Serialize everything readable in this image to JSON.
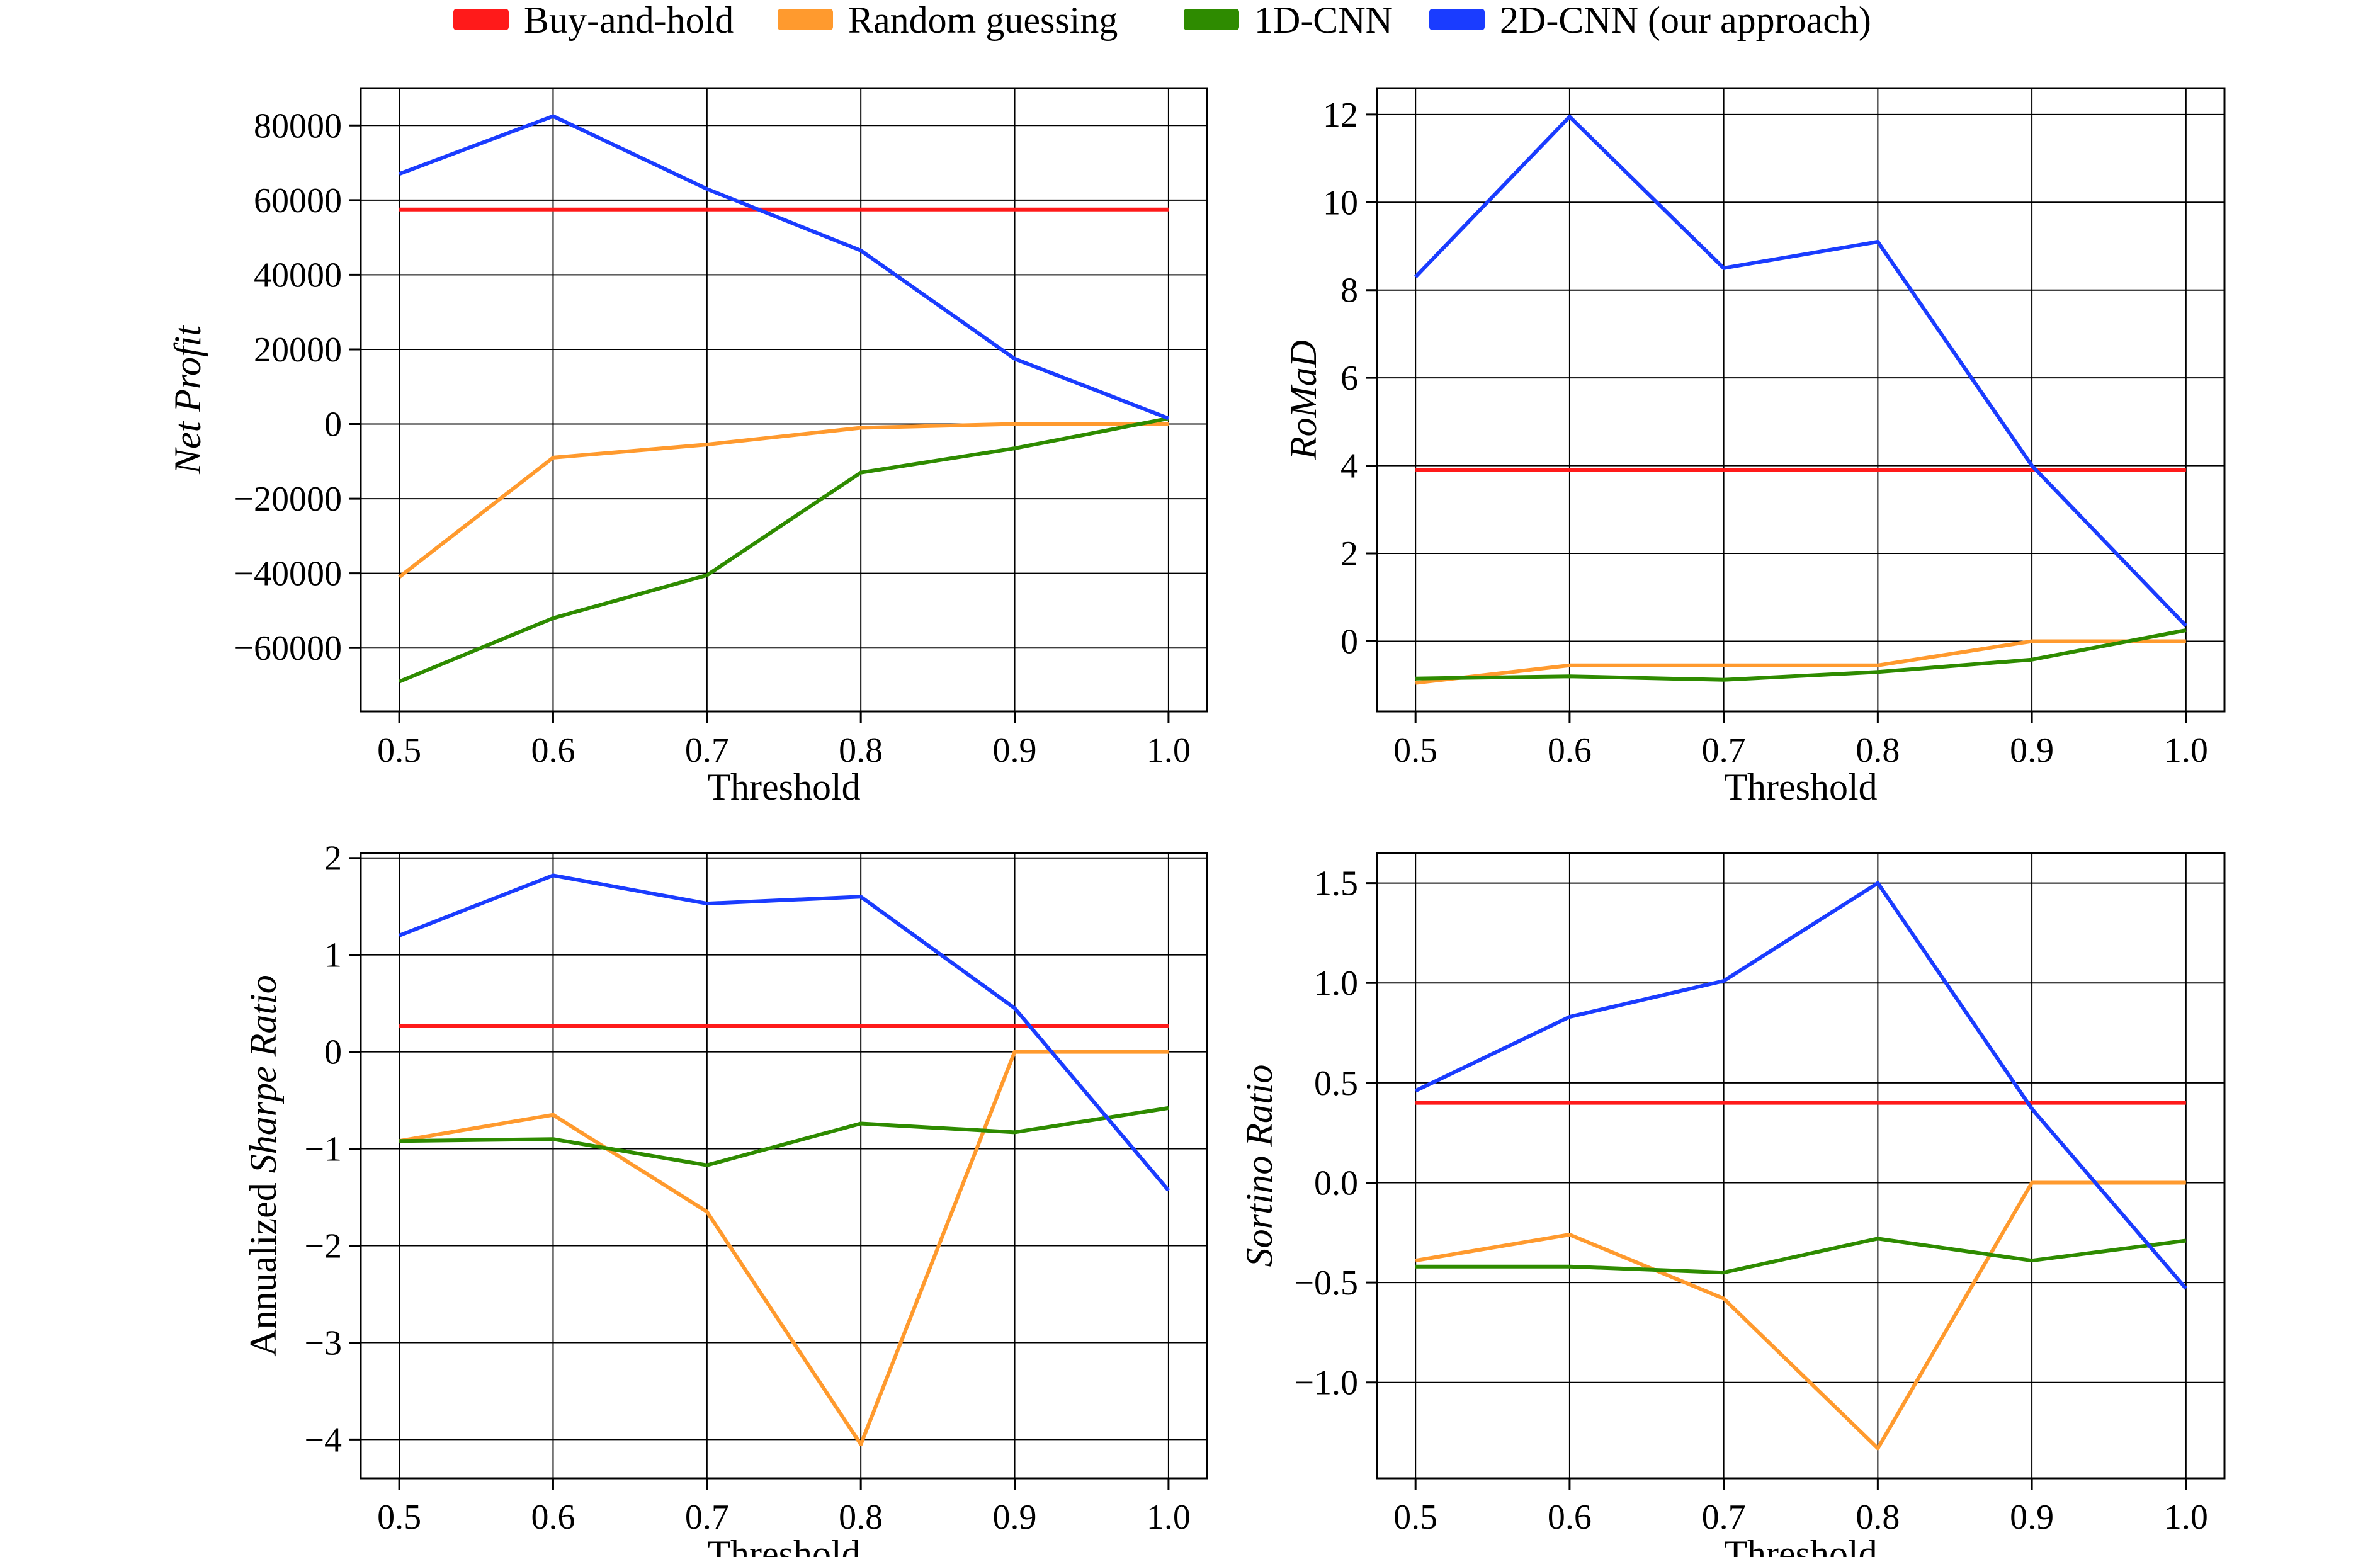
{
  "legend": {
    "items": [
      {
        "label": "Buy-and-hold",
        "color": "#ff1a1a"
      },
      {
        "label": "Random guessing",
        "color": "#ff9a2e"
      },
      {
        "label": "1D-CNN",
        "color": "#2e8b00"
      },
      {
        "label": "2D-CNN (our approach)",
        "color": "#1a3cff"
      }
    ]
  },
  "chart_data": [
    {
      "type": "line",
      "xlabel": "Threshold",
      "ylabel": "Net Profit",
      "ylabel_style": "italic",
      "x": [
        0.5,
        0.6,
        0.7,
        0.8,
        0.9,
        1.0
      ],
      "xticks": [
        "0.5",
        "0.6",
        "0.7",
        "0.8",
        "0.9",
        "1.0"
      ],
      "xlim": [
        0.475,
        1.025
      ],
      "yticks": [
        {
          "value": 80000,
          "label": "80000"
        },
        {
          "value": 60000,
          "label": "60000"
        },
        {
          "value": 40000,
          "label": "40000"
        },
        {
          "value": 20000,
          "label": "20000"
        },
        {
          "value": 0,
          "label": "0"
        },
        {
          "value": -20000,
          "label": "−20000"
        },
        {
          "value": -40000,
          "label": "−40000"
        },
        {
          "value": -60000,
          "label": "−60000"
        }
      ],
      "ylim": [
        -77000,
        90000
      ],
      "grid": true,
      "series": [
        {
          "name": "Buy-and-hold",
          "color": "#ff1a1a",
          "values": [
            57500,
            57500,
            57500,
            57500,
            57500,
            57500
          ]
        },
        {
          "name": "Random guessing",
          "color": "#ff9a2e",
          "values": [
            -41000,
            -9000,
            -5500,
            -1000,
            0,
            0
          ]
        },
        {
          "name": "1D-CNN",
          "color": "#2e8b00",
          "values": [
            -69000,
            -52000,
            -40500,
            -13000,
            -6500,
            1500
          ]
        },
        {
          "name": "2D-CNN (our approach)",
          "color": "#1a3cff",
          "values": [
            67000,
            82500,
            63000,
            46500,
            17500,
            1500
          ]
        }
      ]
    },
    {
      "type": "line",
      "xlabel": "Threshold",
      "ylabel": "RoMaD",
      "ylabel_style": "italic",
      "x": [
        0.5,
        0.6,
        0.7,
        0.8,
        0.9,
        1.0
      ],
      "xticks": [
        "0.5",
        "0.6",
        "0.7",
        "0.8",
        "0.9",
        "1.0"
      ],
      "xlim": [
        0.475,
        1.025
      ],
      "yticks": [
        {
          "value": 12,
          "label": "12"
        },
        {
          "value": 10,
          "label": "10"
        },
        {
          "value": 8,
          "label": "8"
        },
        {
          "value": 6,
          "label": "6"
        },
        {
          "value": 4,
          "label": "4"
        },
        {
          "value": 2,
          "label": "2"
        },
        {
          "value": 0,
          "label": "0"
        }
      ],
      "ylim": [
        -1.6,
        12.6
      ],
      "grid": true,
      "series": [
        {
          "name": "Buy-and-hold",
          "color": "#ff1a1a",
          "values": [
            3.9,
            3.9,
            3.9,
            3.9,
            3.9,
            3.9
          ]
        },
        {
          "name": "Random guessing",
          "color": "#ff9a2e",
          "values": [
            -0.95,
            -0.55,
            -0.55,
            -0.55,
            0.0,
            0.0
          ]
        },
        {
          "name": "1D-CNN",
          "color": "#2e8b00",
          "values": [
            -0.85,
            -0.8,
            -0.88,
            -0.7,
            -0.42,
            0.25
          ]
        },
        {
          "name": "2D-CNN (our approach)",
          "color": "#1a3cff",
          "values": [
            8.3,
            11.95,
            8.5,
            9.1,
            4.0,
            0.35
          ]
        }
      ]
    },
    {
      "type": "line",
      "xlabel": "Threshold",
      "ylabel_parts": [
        "Annualized ",
        "Sharpe Ratio"
      ],
      "x": [
        0.5,
        0.6,
        0.7,
        0.8,
        0.9,
        1.0
      ],
      "xticks": [
        "0.5",
        "0.6",
        "0.7",
        "0.8",
        "0.9",
        "1.0"
      ],
      "xlim": [
        0.475,
        1.025
      ],
      "yticks": [
        {
          "value": 2,
          "label": "2"
        },
        {
          "value": 1,
          "label": "1"
        },
        {
          "value": 0,
          "label": "0"
        },
        {
          "value": -1,
          "label": "−1"
        },
        {
          "value": -2,
          "label": "−2"
        },
        {
          "value": -3,
          "label": "−3"
        },
        {
          "value": -4,
          "label": "−4"
        }
      ],
      "ylim": [
        -4.4,
        2.05
      ],
      "grid": true,
      "series": [
        {
          "name": "Buy-and-hold",
          "color": "#ff1a1a",
          "values": [
            0.27,
            0.27,
            0.27,
            0.27,
            0.27,
            0.27
          ]
        },
        {
          "name": "Random guessing",
          "color": "#ff9a2e",
          "values": [
            -0.92,
            -0.65,
            -1.65,
            -4.05,
            0.0,
            0.0
          ]
        },
        {
          "name": "1D-CNN",
          "color": "#2e8b00",
          "values": [
            -0.92,
            -0.9,
            -1.17,
            -0.74,
            -0.83,
            -0.58
          ]
        },
        {
          "name": "2D-CNN (our approach)",
          "color": "#1a3cff",
          "values": [
            1.2,
            1.82,
            1.53,
            1.6,
            0.45,
            -1.43
          ]
        }
      ]
    },
    {
      "type": "line",
      "xlabel": "Threshold",
      "ylabel": "Sortino Ratio",
      "ylabel_style": "italic",
      "x": [
        0.5,
        0.6,
        0.7,
        0.8,
        0.9,
        1.0
      ],
      "xticks": [
        "0.5",
        "0.6",
        "0.7",
        "0.8",
        "0.9",
        "1.0"
      ],
      "xlim": [
        0.475,
        1.025
      ],
      "yticks": [
        {
          "value": 1.5,
          "label": "1.5"
        },
        {
          "value": 1.0,
          "label": "1.0"
        },
        {
          "value": 0.5,
          "label": "0.5"
        },
        {
          "value": 0.0,
          "label": "0.0"
        },
        {
          "value": -0.5,
          "label": "−0.5"
        },
        {
          "value": -1.0,
          "label": "−1.0"
        }
      ],
      "ylim": [
        -1.48,
        1.65
      ],
      "grid": true,
      "series": [
        {
          "name": "Buy-and-hold",
          "color": "#ff1a1a",
          "values": [
            0.4,
            0.4,
            0.4,
            0.4,
            0.4,
            0.4
          ]
        },
        {
          "name": "Random guessing",
          "color": "#ff9a2e",
          "values": [
            -0.39,
            -0.26,
            -0.58,
            -1.33,
            0.0,
            0.0
          ]
        },
        {
          "name": "1D-CNN",
          "color": "#2e8b00",
          "values": [
            -0.42,
            -0.42,
            -0.45,
            -0.28,
            -0.39,
            -0.29
          ]
        },
        {
          "name": "2D-CNN (our approach)",
          "color": "#1a3cff",
          "values": [
            0.46,
            0.83,
            1.01,
            1.5,
            0.37,
            -0.53
          ]
        }
      ]
    }
  ]
}
